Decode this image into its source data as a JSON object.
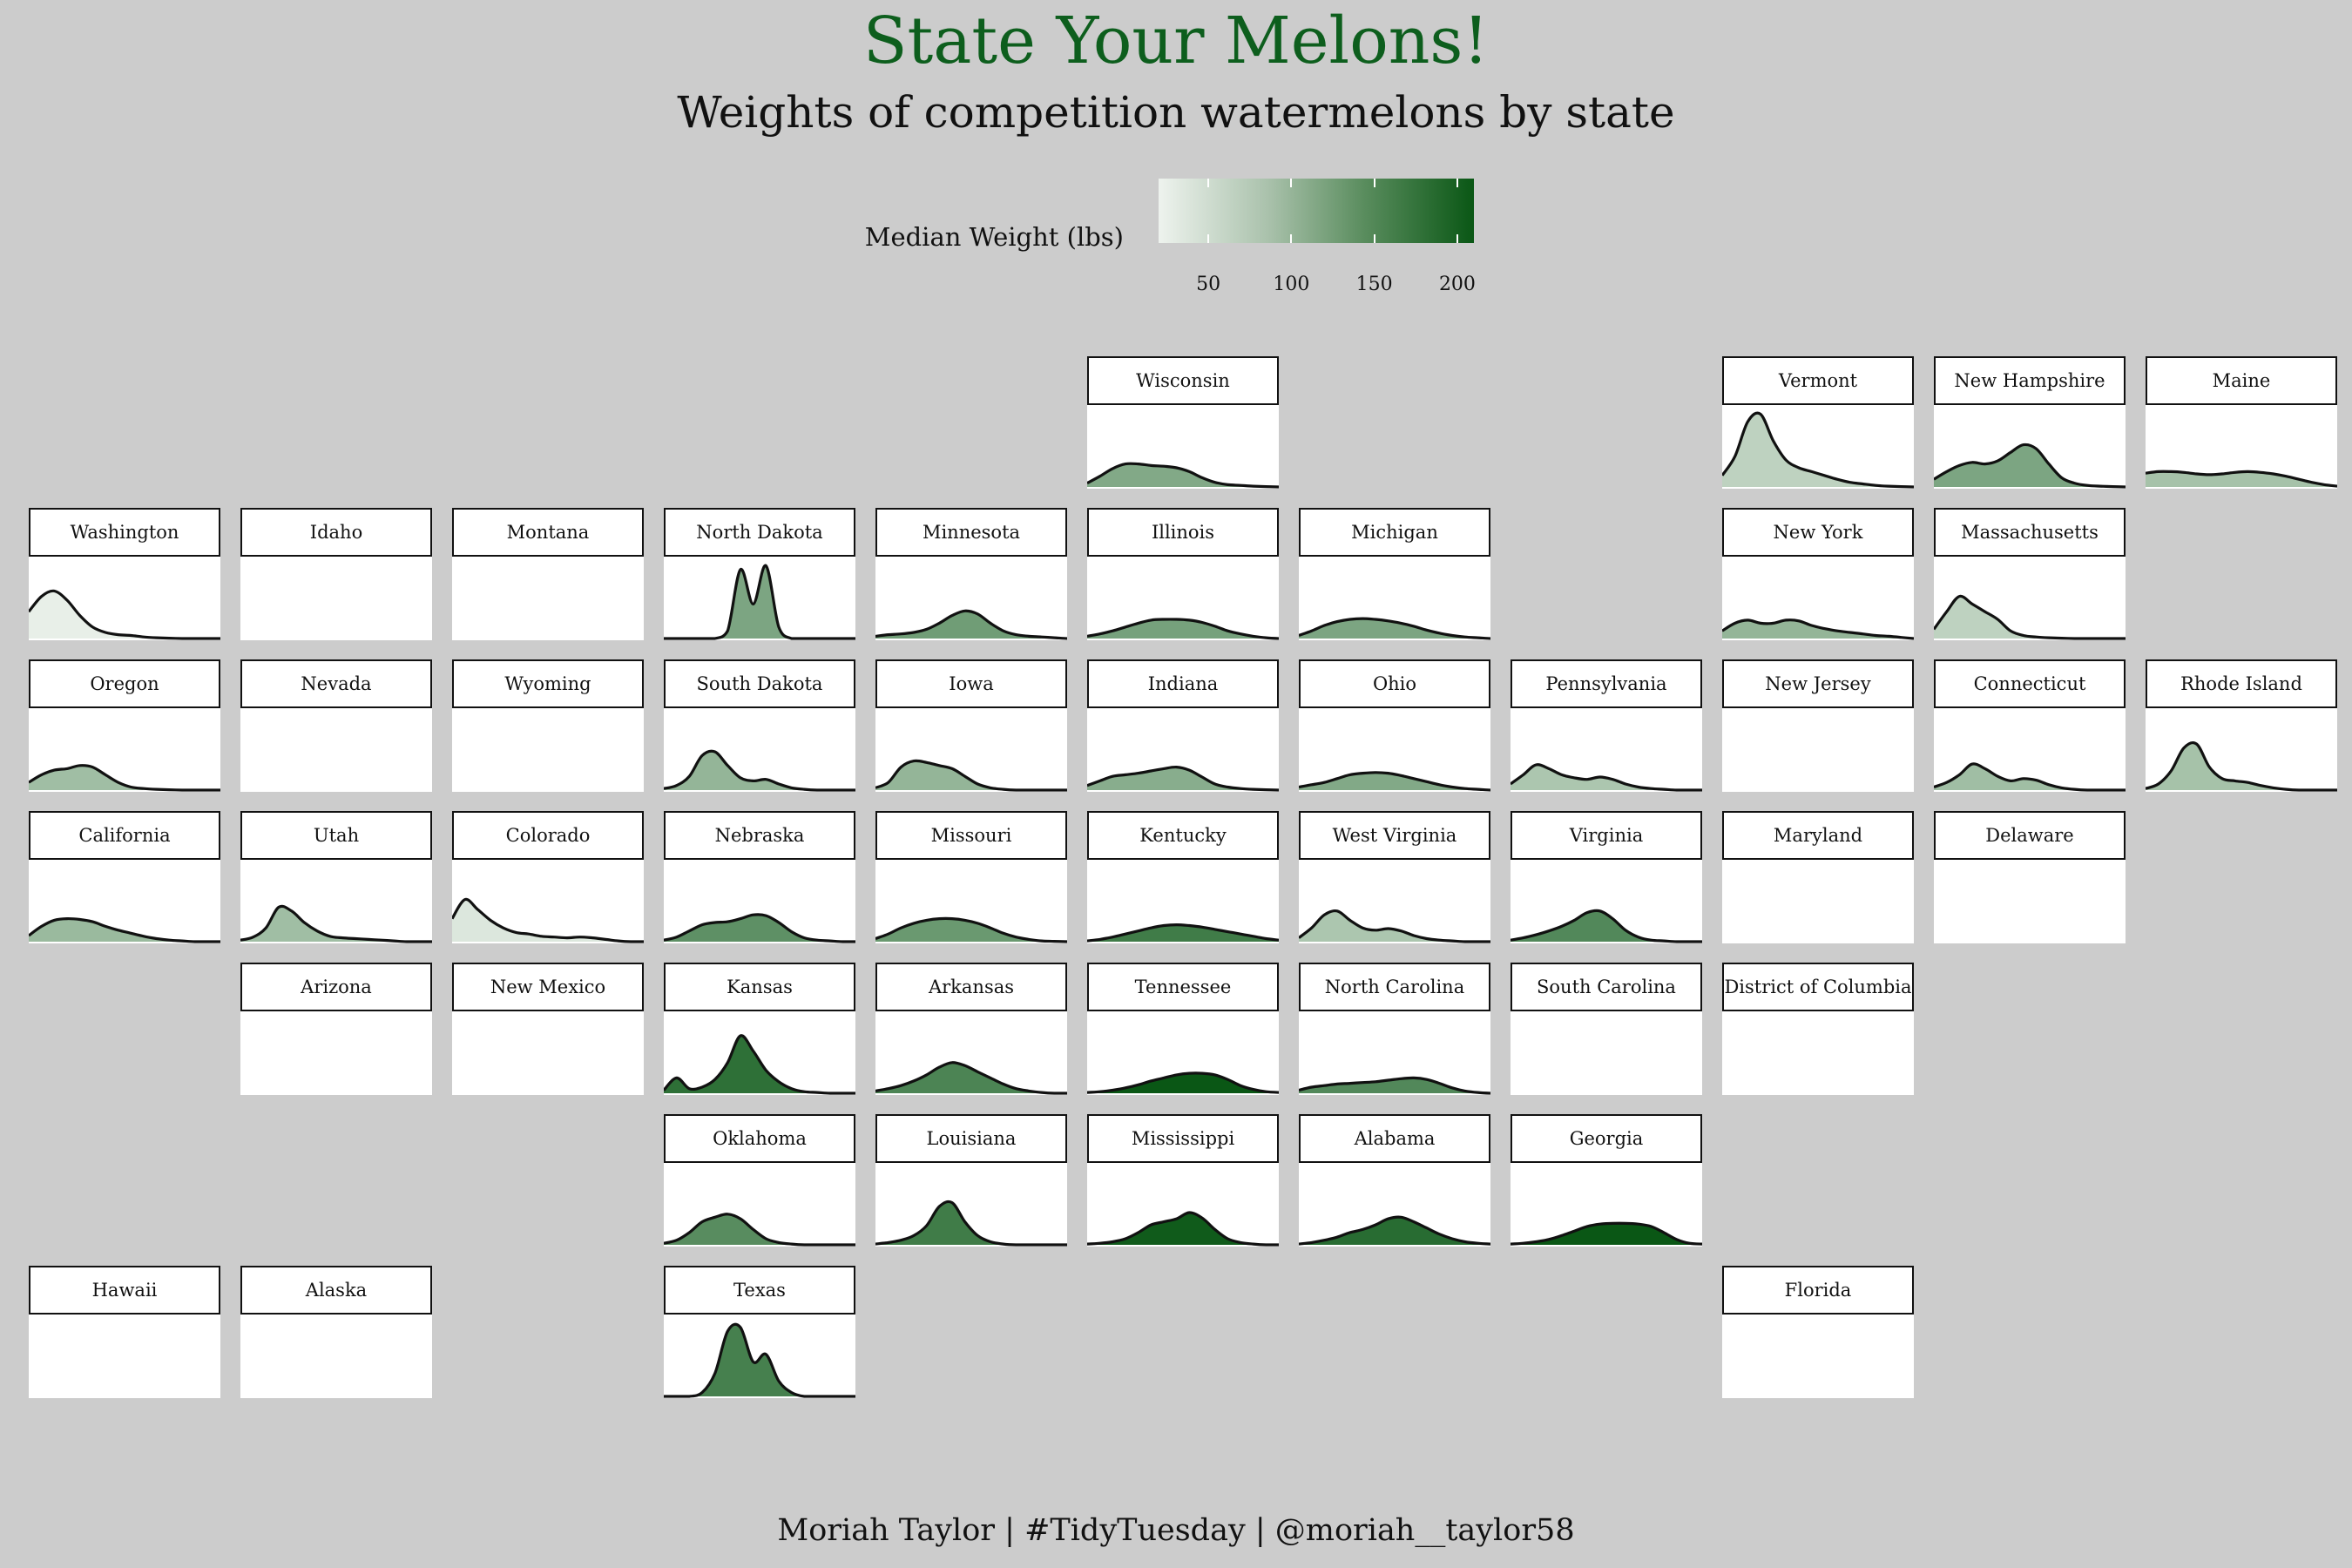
{
  "title": "State Your Melons!",
  "subtitle": "Weights of competition watermelons by state",
  "footer": "Moriah Taylor | #TidyTuesday | @moriah__taylor58",
  "legend": {
    "title": "Median Weight (lbs)",
    "min": 20,
    "max": 210,
    "ticks": [
      50,
      100,
      150,
      200
    ],
    "colors": [
      "#eef3ee",
      "#0a5715"
    ]
  },
  "chart_data": {
    "type": "area",
    "chart_kind": "density small multiples on state grid",
    "panels": [
      {
        "state": "Wisconsin",
        "col": 5,
        "row": 0,
        "median": 110,
        "density": [
          0.05,
          0.14,
          0.24,
          0.3,
          0.3,
          0.28,
          0.27,
          0.25,
          0.2,
          0.12,
          0.06,
          0.03,
          0.02,
          0.01,
          0.005,
          0
        ]
      },
      {
        "state": "Vermont",
        "col": 8,
        "row": 0,
        "median": 60,
        "density": [
          0.15,
          0.4,
          0.85,
          0.95,
          0.6,
          0.35,
          0.25,
          0.2,
          0.15,
          0.1,
          0.06,
          0.04,
          0.02,
          0.01,
          0.005,
          0
        ]
      },
      {
        "state": "New Hampshire",
        "col": 9,
        "row": 0,
        "median": 115,
        "density": [
          0.1,
          0.2,
          0.28,
          0.32,
          0.3,
          0.34,
          0.45,
          0.55,
          0.5,
          0.3,
          0.12,
          0.05,
          0.02,
          0.01,
          0.005,
          0
        ]
      },
      {
        "state": "Maine",
        "col": 10,
        "row": 0,
        "median": 80,
        "density": [
          0.18,
          0.2,
          0.2,
          0.19,
          0.17,
          0.16,
          0.17,
          0.19,
          0.2,
          0.19,
          0.17,
          0.14,
          0.1,
          0.06,
          0.03,
          0.01
        ]
      },
      {
        "state": "Washington",
        "col": 0,
        "row": 1,
        "median": 25,
        "density": [
          0.35,
          0.55,
          0.62,
          0.5,
          0.3,
          0.15,
          0.08,
          0.05,
          0.04,
          0.02,
          0.01,
          0.005,
          0,
          0,
          0,
          0
        ]
      },
      {
        "state": "Idaho",
        "col": 1,
        "row": 1,
        "median": null,
        "density": []
      },
      {
        "state": "Montana",
        "col": 2,
        "row": 1,
        "median": null,
        "density": []
      },
      {
        "state": "North Dakota",
        "col": 3,
        "row": 1,
        "median": 115,
        "density": [
          0,
          0,
          0,
          0,
          0,
          0.1,
          0.9,
          0.45,
          0.95,
          0.15,
          0,
          0,
          0,
          0,
          0,
          0
        ]
      },
      {
        "state": "Minnesota",
        "col": 4,
        "row": 1,
        "median": 125,
        "density": [
          0.03,
          0.05,
          0.06,
          0.08,
          0.12,
          0.2,
          0.3,
          0.36,
          0.32,
          0.2,
          0.1,
          0.05,
          0.03,
          0.02,
          0.01,
          0
        ]
      },
      {
        "state": "Illinois",
        "col": 5,
        "row": 1,
        "median": 120,
        "density": [
          0.03,
          0.06,
          0.1,
          0.15,
          0.2,
          0.24,
          0.25,
          0.25,
          0.24,
          0.21,
          0.16,
          0.1,
          0.06,
          0.03,
          0.01,
          0
        ]
      },
      {
        "state": "Michigan",
        "col": 6,
        "row": 1,
        "median": 115,
        "density": [
          0.04,
          0.1,
          0.17,
          0.22,
          0.25,
          0.26,
          0.25,
          0.23,
          0.2,
          0.16,
          0.11,
          0.07,
          0.04,
          0.02,
          0.01,
          0
        ]
      },
      {
        "state": "New York",
        "col": 8,
        "row": 1,
        "median": 95,
        "density": [
          0.1,
          0.2,
          0.24,
          0.2,
          0.2,
          0.24,
          0.23,
          0.17,
          0.13,
          0.1,
          0.08,
          0.06,
          0.04,
          0.03,
          0.015,
          0
        ]
      },
      {
        "state": "Massachusetts",
        "col": 9,
        "row": 1,
        "median": 60,
        "density": [
          0.12,
          0.35,
          0.55,
          0.45,
          0.35,
          0.25,
          0.1,
          0.04,
          0.02,
          0.01,
          0.005,
          0,
          0,
          0,
          0,
          0
        ]
      },
      {
        "state": "Oregon",
        "col": 0,
        "row": 2,
        "median": 85,
        "density": [
          0.1,
          0.2,
          0.26,
          0.28,
          0.32,
          0.3,
          0.2,
          0.1,
          0.04,
          0.02,
          0.01,
          0.005,
          0,
          0,
          0,
          0
        ]
      },
      {
        "state": "Nevada",
        "col": 1,
        "row": 2,
        "median": null,
        "density": []
      },
      {
        "state": "Wyoming",
        "col": 2,
        "row": 2,
        "median": null,
        "density": []
      },
      {
        "state": "South Dakota",
        "col": 3,
        "row": 2,
        "median": 95,
        "density": [
          0.02,
          0.06,
          0.18,
          0.45,
          0.5,
          0.32,
          0.16,
          0.12,
          0.14,
          0.08,
          0.03,
          0.01,
          0,
          0,
          0,
          0
        ]
      },
      {
        "state": "Iowa",
        "col": 4,
        "row": 2,
        "median": 95,
        "density": [
          0.03,
          0.1,
          0.3,
          0.38,
          0.36,
          0.32,
          0.28,
          0.18,
          0.08,
          0.03,
          0.01,
          0,
          0,
          0,
          0,
          0
        ]
      },
      {
        "state": "Indiana",
        "col": 5,
        "row": 2,
        "median": 105,
        "density": [
          0.06,
          0.12,
          0.18,
          0.2,
          0.22,
          0.25,
          0.28,
          0.3,
          0.26,
          0.17,
          0.08,
          0.04,
          0.02,
          0.01,
          0.005,
          0
        ]
      },
      {
        "state": "Ohio",
        "col": 6,
        "row": 2,
        "median": 110,
        "density": [
          0.04,
          0.07,
          0.1,
          0.15,
          0.2,
          0.22,
          0.23,
          0.22,
          0.19,
          0.15,
          0.11,
          0.07,
          0.04,
          0.02,
          0.01,
          0
        ]
      },
      {
        "state": "Pennsylvania",
        "col": 7,
        "row": 2,
        "median": 75,
        "density": [
          0.08,
          0.2,
          0.33,
          0.28,
          0.2,
          0.16,
          0.14,
          0.17,
          0.14,
          0.08,
          0.04,
          0.02,
          0.01,
          0,
          0,
          0
        ]
      },
      {
        "state": "New Jersey",
        "col": 8,
        "row": 2,
        "median": null,
        "density": []
      },
      {
        "state": "Connecticut",
        "col": 9,
        "row": 2,
        "median": 85,
        "density": [
          0.04,
          0.1,
          0.2,
          0.34,
          0.28,
          0.18,
          0.12,
          0.15,
          0.13,
          0.07,
          0.03,
          0.01,
          0,
          0,
          0,
          0
        ]
      },
      {
        "state": "Rhode Island",
        "col": 10,
        "row": 2,
        "median": 80,
        "density": [
          0.02,
          0.08,
          0.25,
          0.55,
          0.6,
          0.3,
          0.15,
          0.12,
          0.1,
          0.06,
          0.03,
          0.01,
          0,
          0,
          0,
          0
        ]
      },
      {
        "state": "California",
        "col": 0,
        "row": 3,
        "median": 90,
        "density": [
          0.08,
          0.2,
          0.28,
          0.3,
          0.29,
          0.26,
          0.2,
          0.15,
          0.11,
          0.07,
          0.04,
          0.02,
          0.01,
          0,
          0,
          0
        ]
      },
      {
        "state": "Utah",
        "col": 1,
        "row": 3,
        "median": 85,
        "density": [
          0.02,
          0.06,
          0.18,
          0.45,
          0.4,
          0.25,
          0.14,
          0.07,
          0.05,
          0.04,
          0.03,
          0.02,
          0.01,
          0,
          0,
          0
        ]
      },
      {
        "state": "Colorado",
        "col": 2,
        "row": 3,
        "median": 35,
        "density": [
          0.3,
          0.55,
          0.42,
          0.28,
          0.18,
          0.12,
          0.1,
          0.07,
          0.06,
          0.05,
          0.06,
          0.05,
          0.03,
          0.01,
          0,
          0
        ]
      },
      {
        "state": "Nebraska",
        "col": 3,
        "row": 3,
        "median": 140,
        "density": [
          0.02,
          0.06,
          0.14,
          0.22,
          0.25,
          0.26,
          0.3,
          0.35,
          0.34,
          0.25,
          0.13,
          0.05,
          0.02,
          0.01,
          0,
          0
        ]
      },
      {
        "state": "Missouri",
        "col": 4,
        "row": 3,
        "median": 130,
        "density": [
          0.04,
          0.1,
          0.18,
          0.24,
          0.28,
          0.3,
          0.3,
          0.28,
          0.24,
          0.18,
          0.11,
          0.06,
          0.03,
          0.01,
          0.005,
          0
        ]
      },
      {
        "state": "Kentucky",
        "col": 5,
        "row": 3,
        "median": 165,
        "density": [
          0.01,
          0.03,
          0.06,
          0.1,
          0.14,
          0.18,
          0.21,
          0.22,
          0.21,
          0.19,
          0.16,
          0.13,
          0.1,
          0.07,
          0.04,
          0.02
        ]
      },
      {
        "state": "West Virginia",
        "col": 6,
        "row": 3,
        "median": 75,
        "density": [
          0.05,
          0.18,
          0.35,
          0.4,
          0.28,
          0.18,
          0.15,
          0.17,
          0.14,
          0.08,
          0.04,
          0.02,
          0.01,
          0,
          0,
          0
        ]
      },
      {
        "state": "Virginia",
        "col": 7,
        "row": 3,
        "median": 150,
        "density": [
          0.02,
          0.05,
          0.09,
          0.14,
          0.2,
          0.28,
          0.38,
          0.4,
          0.3,
          0.15,
          0.06,
          0.02,
          0.01,
          0,
          0,
          0
        ]
      },
      {
        "state": "Maryland",
        "col": 8,
        "row": 3,
        "median": null,
        "density": []
      },
      {
        "state": "Delaware",
        "col": 9,
        "row": 3,
        "median": null,
        "density": []
      },
      {
        "state": "Arizona",
        "col": 1,
        "row": 4,
        "median": null,
        "density": []
      },
      {
        "state": "New Mexico",
        "col": 2,
        "row": 4,
        "median": null,
        "density": []
      },
      {
        "state": "Kansas",
        "col": 3,
        "row": 4,
        "median": 180,
        "density": [
          0.04,
          0.2,
          0.06,
          0.08,
          0.18,
          0.4,
          0.75,
          0.55,
          0.3,
          0.15,
          0.06,
          0.02,
          0.01,
          0,
          0,
          0
        ]
      },
      {
        "state": "Arkansas",
        "col": 4,
        "row": 4,
        "median": 155,
        "density": [
          0.03,
          0.06,
          0.1,
          0.16,
          0.24,
          0.34,
          0.4,
          0.36,
          0.28,
          0.2,
          0.12,
          0.06,
          0.03,
          0.01,
          0,
          0
        ]
      },
      {
        "state": "Tennessee",
        "col": 5,
        "row": 4,
        "median": 210,
        "density": [
          0.01,
          0.02,
          0.04,
          0.07,
          0.11,
          0.16,
          0.2,
          0.24,
          0.26,
          0.26,
          0.24,
          0.18,
          0.1,
          0.05,
          0.02,
          0.01
        ]
      },
      {
        "state": "North Carolina",
        "col": 6,
        "row": 4,
        "median": 150,
        "density": [
          0.04,
          0.08,
          0.1,
          0.12,
          0.13,
          0.14,
          0.15,
          0.17,
          0.19,
          0.2,
          0.18,
          0.13,
          0.07,
          0.03,
          0.01,
          0
        ]
      },
      {
        "state": "South Carolina",
        "col": 7,
        "row": 4,
        "median": null,
        "density": []
      },
      {
        "state": "District of Columbia",
        "col": 8,
        "row": 4,
        "median": null,
        "density": []
      },
      {
        "state": "Oklahoma",
        "col": 3,
        "row": 5,
        "median": 145,
        "density": [
          0.02,
          0.06,
          0.16,
          0.3,
          0.36,
          0.4,
          0.34,
          0.2,
          0.08,
          0.03,
          0.01,
          0,
          0,
          0,
          0,
          0
        ]
      },
      {
        "state": "Louisiana",
        "col": 4,
        "row": 5,
        "median": 165,
        "density": [
          0.01,
          0.03,
          0.06,
          0.12,
          0.25,
          0.5,
          0.55,
          0.3,
          0.12,
          0.04,
          0.01,
          0,
          0,
          0,
          0,
          0
        ]
      },
      {
        "state": "Mississippi",
        "col": 5,
        "row": 5,
        "median": 205,
        "density": [
          0.01,
          0.02,
          0.04,
          0.08,
          0.16,
          0.26,
          0.3,
          0.34,
          0.42,
          0.35,
          0.2,
          0.08,
          0.03,
          0.01,
          0,
          0
        ]
      },
      {
        "state": "Alabama",
        "col": 6,
        "row": 5,
        "median": 185,
        "density": [
          0.01,
          0.03,
          0.06,
          0.1,
          0.16,
          0.2,
          0.26,
          0.34,
          0.36,
          0.3,
          0.22,
          0.14,
          0.08,
          0.04,
          0.02,
          0.01
        ]
      },
      {
        "state": "Georgia",
        "col": 7,
        "row": 5,
        "median": 210,
        "density": [
          0.01,
          0.02,
          0.04,
          0.07,
          0.12,
          0.18,
          0.24,
          0.27,
          0.28,
          0.28,
          0.27,
          0.24,
          0.16,
          0.07,
          0.02,
          0.01
        ]
      },
      {
        "state": "Hawaii",
        "col": 0,
        "row": 6,
        "median": null,
        "density": []
      },
      {
        "state": "Alaska",
        "col": 1,
        "row": 6,
        "median": null,
        "density": []
      },
      {
        "state": "Texas",
        "col": 3,
        "row": 6,
        "median": 160,
        "density": [
          0,
          0,
          0,
          0.05,
          0.3,
          0.85,
          0.9,
          0.45,
          0.55,
          0.2,
          0.05,
          0,
          0,
          0,
          0,
          0
        ]
      },
      {
        "state": "Florida",
        "col": 8,
        "row": 6,
        "median": null,
        "density": []
      }
    ]
  }
}
